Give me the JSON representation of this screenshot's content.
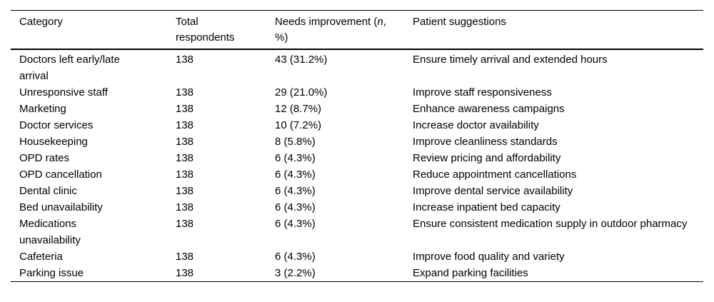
{
  "page": {
    "background_color": "#ffffff",
    "text_color": "#000000",
    "rule_color": "#000000"
  },
  "table": {
    "headers": {
      "category": "Category",
      "total_respondents": "Total respondents",
      "needs_improvement_prefix": "Needs improvement (",
      "needs_improvement_n": "n",
      "needs_improvement_suffix": ", %)",
      "patient_suggestions": "Patient suggestions"
    },
    "rows": [
      {
        "category": "Doctors left early/late arrival",
        "total": "138",
        "needs": "43 (31.2%)",
        "suggestion": "Ensure timely arrival and extended hours"
      },
      {
        "category": "Unresponsive staff",
        "total": "138",
        "needs": "29 (21.0%)",
        "suggestion": "Improve staff responsiveness"
      },
      {
        "category": "Marketing",
        "total": "138",
        "needs": "12 (8.7%)",
        "suggestion": "Enhance awareness campaigns"
      },
      {
        "category": "Doctor services",
        "total": "138",
        "needs": "10 (7.2%)",
        "suggestion": "Increase doctor availability"
      },
      {
        "category": "Housekeeping",
        "total": "138",
        "needs": "8 (5.8%)",
        "suggestion": "Improve cleanliness standards"
      },
      {
        "category": "OPD rates",
        "total": "138",
        "needs": "6 (4.3%)",
        "suggestion": "Review pricing and affordability"
      },
      {
        "category": "OPD cancellation",
        "total": "138",
        "needs": "6 (4.3%)",
        "suggestion": "Reduce appointment cancellations"
      },
      {
        "category": "Dental clinic",
        "total": "138",
        "needs": "6 (4.3%)",
        "suggestion": "Improve dental service availability"
      },
      {
        "category": "Bed unavailability",
        "total": "138",
        "needs": "6 (4.3%)",
        "suggestion": "Increase inpatient bed capacity"
      },
      {
        "category": "Medications unavailability",
        "total": "138",
        "needs": "6 (4.3%)",
        "suggestion": "Ensure consistent medication supply in outdoor pharmacy"
      },
      {
        "category": "Cafeteria",
        "total": "138",
        "needs": "6 (4.3%)",
        "suggestion": "Improve food quality and variety"
      },
      {
        "category": "Parking issue",
        "total": "138",
        "needs": "3 (2.2%)",
        "suggestion": "Expand parking facilities"
      }
    ]
  }
}
